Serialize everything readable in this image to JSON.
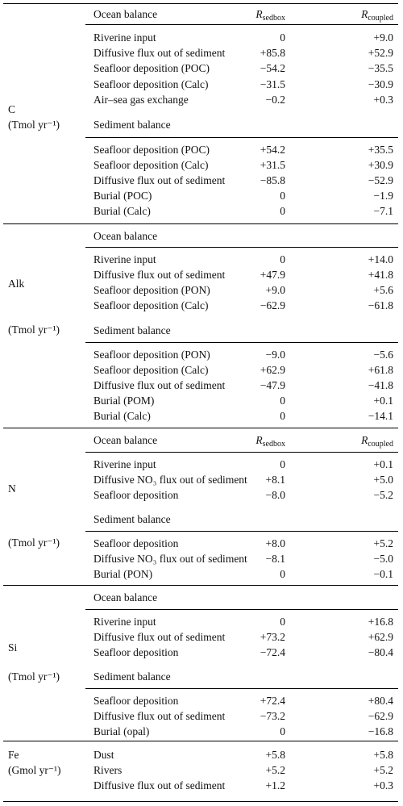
{
  "headers": {
    "ocean": "Ocean balance",
    "sediment": "Sediment balance",
    "col1_main": "R",
    "col1_sub": "sedbox",
    "col2_main": "R",
    "col2_sub": "coupled"
  },
  "sections": [
    {
      "element": "C",
      "unit": "(Tmol yr⁻¹)",
      "ocean_rows": [
        {
          "label": "Riverine input",
          "v1": "0",
          "v2": "+9.0"
        },
        {
          "label": "Diffusive flux out of sediment",
          "v1": "+85.8",
          "v2": "+52.9"
        },
        {
          "label": "Seafloor deposition (POC)",
          "v1": "−54.2",
          "v2": "−35.5"
        },
        {
          "label": "Seafloor deposition (Calc)",
          "v1": "−31.5",
          "v2": "−30.9"
        },
        {
          "label": "Air–sea gas exchange",
          "v1": "−0.2",
          "v2": "+0.3"
        }
      ],
      "sediment_rows": [
        {
          "label": "Seafloor deposition (POC)",
          "v1": "+54.2",
          "v2": "+35.5"
        },
        {
          "label": "Seafloor deposition (Calc)",
          "v1": "+31.5",
          "v2": "+30.9"
        },
        {
          "label": "Diffusive flux out of sediment",
          "v1": "−85.8",
          "v2": "−52.9"
        },
        {
          "label": "Burial (POC)",
          "v1": "0",
          "v2": "−1.9"
        },
        {
          "label": "Burial (Calc)",
          "v1": "0",
          "v2": "−7.1"
        }
      ]
    },
    {
      "element": "Alk",
      "unit": "(Tmol yr⁻¹)",
      "ocean_rows": [
        {
          "label": "Riverine input",
          "v1": "0",
          "v2": "+14.0"
        },
        {
          "label": "Diffusive flux out of sediment",
          "v1": "+47.9",
          "v2": "+41.8"
        },
        {
          "label": "Seafloor deposition (PON)",
          "v1": "+9.0",
          "v2": "+5.6"
        },
        {
          "label": "Seafloor deposition (Calc)",
          "v1": "−62.9",
          "v2": "−61.8"
        }
      ],
      "sediment_rows": [
        {
          "label": "Seafloor deposition (PON)",
          "v1": "−9.0",
          "v2": "−5.6"
        },
        {
          "label": "Seafloor deposition (Calc)",
          "v1": "+62.9",
          "v2": "+61.8"
        },
        {
          "label": "Diffusive flux out of sediment",
          "v1": "−47.9",
          "v2": "−41.8"
        },
        {
          "label": "Burial (POM)",
          "v1": "0",
          "v2": "+0.1"
        },
        {
          "label": "Burial (Calc)",
          "v1": "0",
          "v2": "−14.1"
        }
      ]
    },
    {
      "element": "N",
      "unit": "(Tmol yr⁻¹)",
      "ocean_rows": [
        {
          "label": "Riverine input",
          "v1": "0",
          "v2": "+0.1"
        },
        {
          "label": "Diffusive NO₃ flux out of sediment",
          "v1": "+8.1",
          "v2": "+5.0"
        },
        {
          "label": "Seafloor deposition",
          "v1": "−8.0",
          "v2": "−5.2"
        }
      ],
      "sediment_rows": [
        {
          "label": "Seafloor deposition",
          "v1": "+8.0",
          "v2": "+5.2"
        },
        {
          "label": "Diffusive NO₃ flux out of sediment",
          "v1": "−8.1",
          "v2": "−5.0"
        },
        {
          "label": "Burial (PON)",
          "v1": "0",
          "v2": "−0.1"
        }
      ]
    },
    {
      "element": "Si",
      "unit": "(Tmol yr⁻¹)",
      "ocean_rows": [
        {
          "label": "Riverine input",
          "v1": "0",
          "v2": "+16.8"
        },
        {
          "label": "Diffusive flux out of sediment",
          "v1": "+73.2",
          "v2": "+62.9"
        },
        {
          "label": "Seafloor deposition",
          "v1": "−72.4",
          "v2": "−80.4"
        }
      ],
      "sediment_rows": [
        {
          "label": "Seafloor deposition",
          "v1": "+72.4",
          "v2": "+80.4"
        },
        {
          "label": "Diffusive flux out of sediment",
          "v1": "−73.2",
          "v2": "−62.9"
        },
        {
          "label": "Burial (opal)",
          "v1": "0",
          "v2": "−16.8"
        }
      ]
    },
    {
      "element": "Fe",
      "unit": "(Gmol yr⁻¹)",
      "rows": [
        {
          "label": "Dust",
          "v1": "+5.8",
          "v2": "+5.8"
        },
        {
          "label": "Rivers",
          "v1": "+5.2",
          "v2": "+5.2"
        },
        {
          "label": "Diffusive flux out of sediment",
          "v1": "+1.2",
          "v2": "+0.3"
        }
      ]
    }
  ]
}
